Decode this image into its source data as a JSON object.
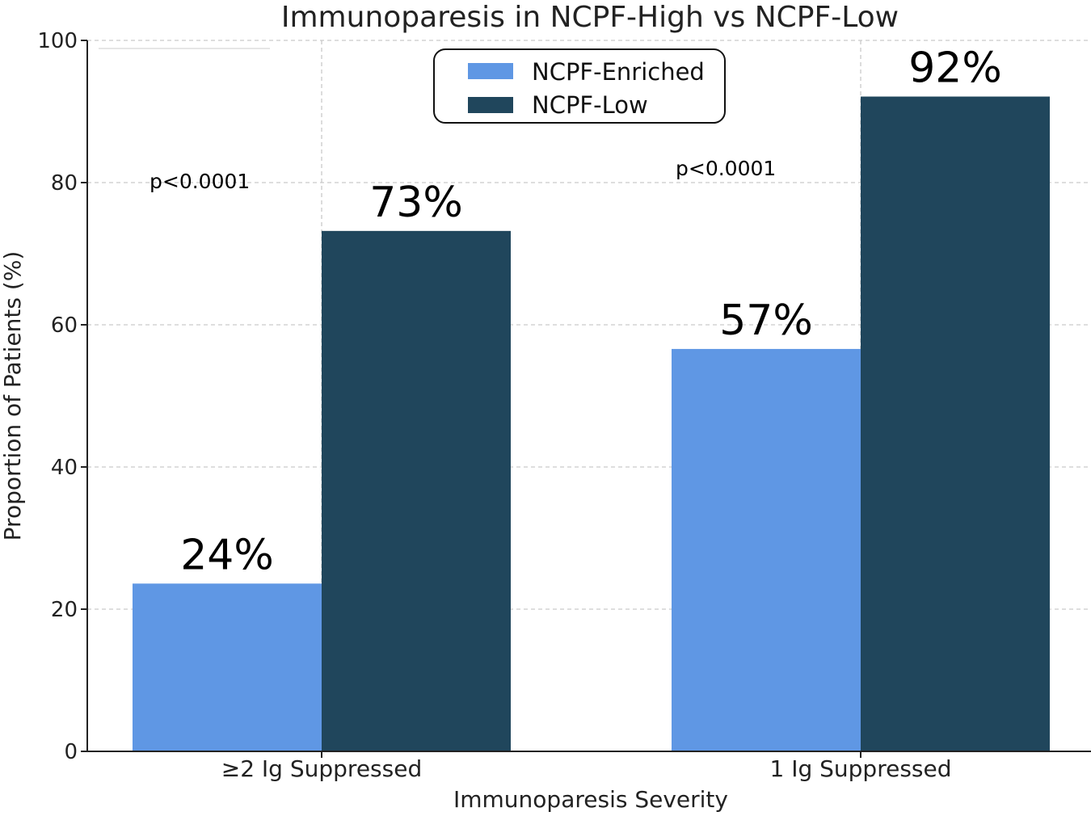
{
  "chart_data": {
    "type": "bar",
    "title": "Immunoparesis in NCPF-High vs NCPF-Low",
    "xlabel": "Immunoparesis Severity",
    "ylabel": "Proportion of Patients (%)",
    "ylim": [
      0,
      100
    ],
    "yticks": [
      "0",
      "20",
      "40",
      "60",
      "80",
      "100"
    ],
    "categories": [
      "≥2 Ig Suppressed",
      "1 Ig Suppressed"
    ],
    "series": [
      {
        "name": "NCPF-Enriched",
        "color": "#5f97e4",
        "values": [
          23.6,
          56.6
        ],
        "labels": [
          "24%",
          "57%"
        ]
      },
      {
        "name": "NCPF-Low",
        "color": "#20465c",
        "values": [
          73.2,
          92.1
        ],
        "labels": [
          "73%",
          "92%"
        ]
      }
    ],
    "annotations": [
      "p<0.0001",
      "p<0.0001"
    ],
    "grid": true,
    "legend": "top-center"
  }
}
